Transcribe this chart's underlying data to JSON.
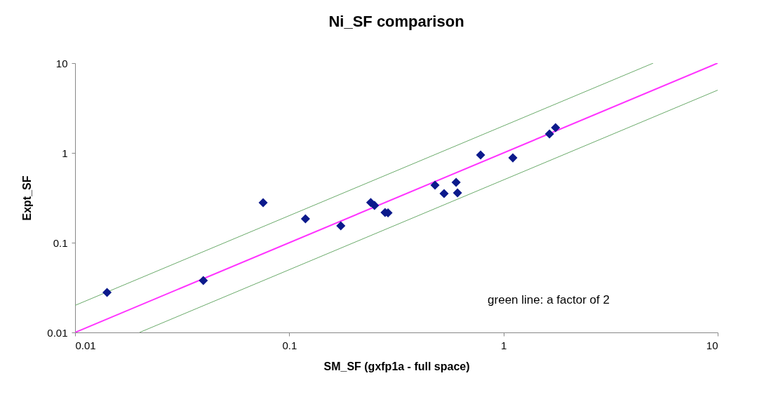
{
  "chart_data": {
    "type": "scatter",
    "title": "Ni_SF comparison",
    "xlabel": "SM_SF (gxfp1a - full space)",
    "ylabel": "Expt_SF",
    "log": "xy",
    "xlim": [
      0.01,
      10
    ],
    "ylim": [
      0.01,
      10
    ],
    "xticks": [
      0.01,
      0.1,
      1,
      10
    ],
    "yticks": [
      0.01,
      0.1,
      1,
      10
    ],
    "grid": false,
    "marker": "diamond",
    "series": [
      {
        "type": "line",
        "marker": "none",
        "color": "#ff33ff",
        "x": [
          0.01,
          10
        ],
        "values": [
          0.01,
          10
        ]
      },
      {
        "type": "line",
        "marker": "none",
        "color": "#6aaa6a",
        "x": [
          0.01,
          5
        ],
        "values": [
          0.02,
          10
        ]
      },
      {
        "type": "line",
        "marker": "none",
        "color": "#6aaa6a",
        "x": [
          0.02,
          10
        ],
        "values": [
          0.01,
          5
        ]
      },
      {
        "color": "#0c1a8c",
        "x": [
          0.0141,
          0.0397,
          0.0755,
          0.119,
          0.174,
          0.24,
          0.25,
          0.28,
          0.289,
          0.479,
          0.528,
          0.601,
          0.61,
          0.782,
          1.106,
          1.64,
          1.75
        ],
        "values": [
          0.0279,
          0.0379,
          0.279,
          0.184,
          0.154,
          0.28,
          0.26,
          0.217,
          0.215,
          0.437,
          0.352,
          0.47,
          0.359,
          0.948,
          0.88,
          1.625,
          1.91
        ]
      }
    ],
    "annotations": [
      "green line: a factor of 2"
    ]
  }
}
